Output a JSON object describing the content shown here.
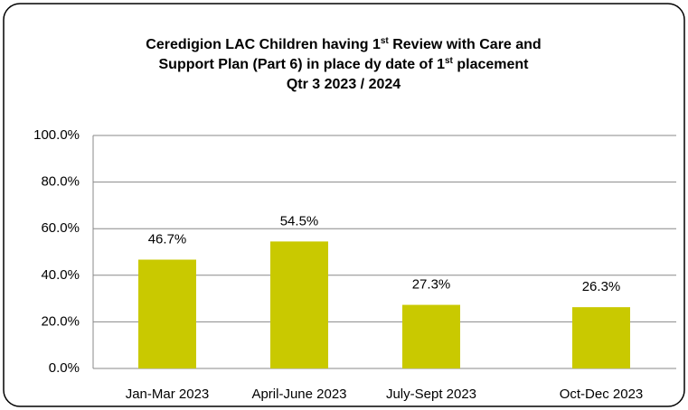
{
  "chart_data": {
    "type": "bar",
    "title_lines": [
      "Ceredigion LAC Children having 1st Review with Care and",
      "Support Plan  (Part 6) in place dy date of 1st placement",
      "Qtr 3 2023 / 2024"
    ],
    "categories": [
      "Jan-Mar 2023",
      "April-June 2023",
      "July-Sept 2023",
      "Oct-Dec 2023"
    ],
    "values": [
      46.7,
      54.5,
      27.3,
      26.3
    ],
    "value_labels": [
      "46.7%",
      "54.5%",
      "27.3%",
      "26.3%"
    ],
    "color": "#c9c900",
    "ylim": [
      0,
      100
    ],
    "yticks": [
      {
        "value": 0,
        "label": "0.0%"
      },
      {
        "value": 20,
        "label": "20.0%"
      },
      {
        "value": 40,
        "label": "40.0%"
      },
      {
        "value": 60,
        "label": "60.0%"
      },
      {
        "value": 80,
        "label": "80.0%"
      },
      {
        "value": 100,
        "label": "100.0%"
      }
    ],
    "grid": true
  }
}
